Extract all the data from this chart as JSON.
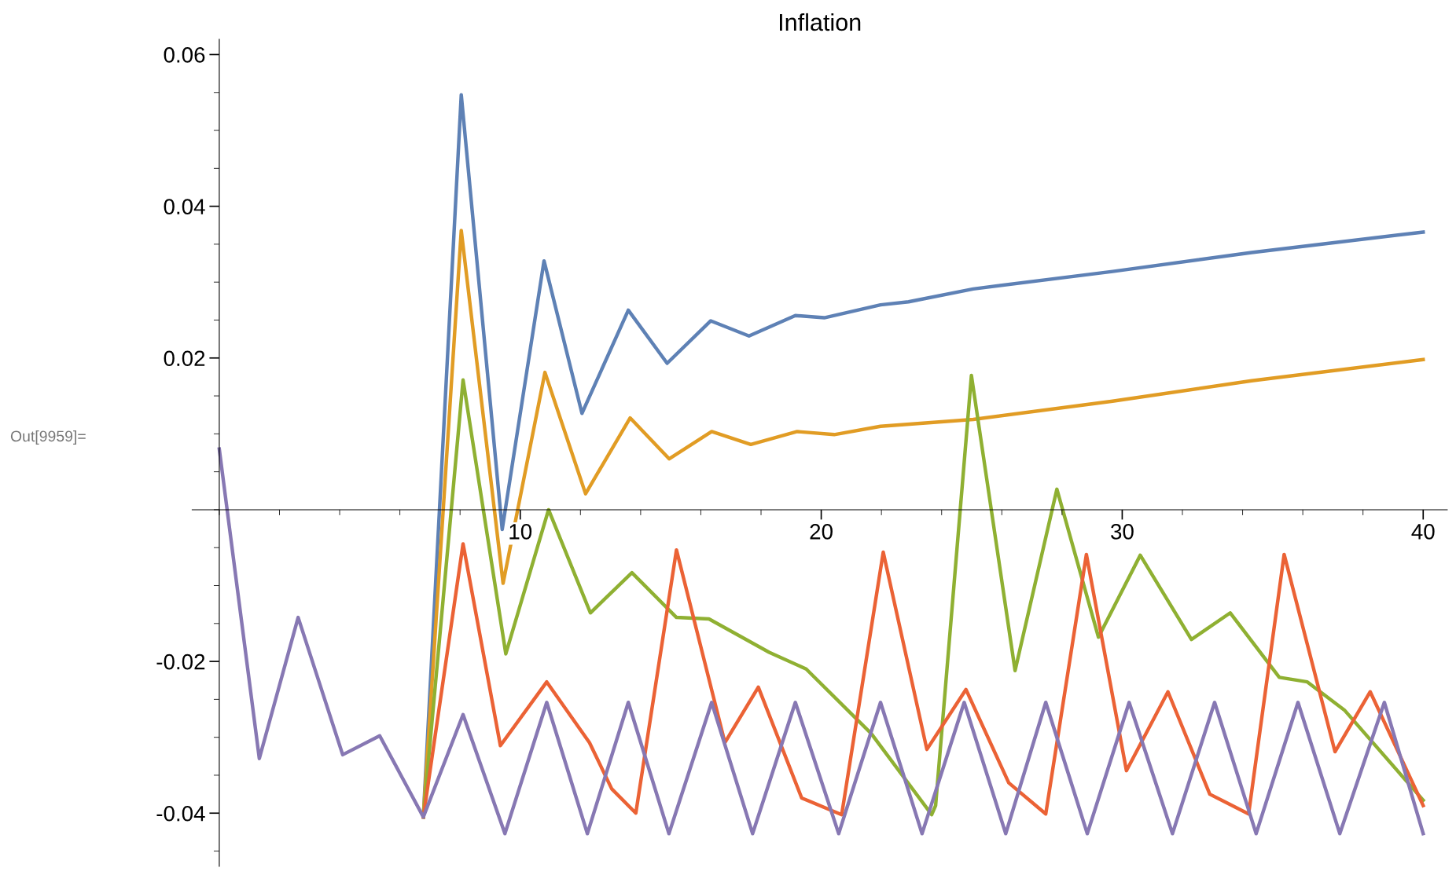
{
  "chart_data": {
    "type": "line",
    "title": "Inflation",
    "annotations": [
      "Out[9959]="
    ],
    "xlim": [
      -0.9,
      40.8
    ],
    "ylim": [
      -0.047,
      0.062
    ],
    "xticks": [
      10,
      20,
      30,
      40
    ],
    "yticks": [
      -0.04,
      -0.02,
      0.02,
      0.04,
      0.06
    ],
    "grid": false,
    "legend": false,
    "marker": "none",
    "line_style": "solid",
    "series": [
      {
        "color": "#5e81b5",
        "x": [
          6.78,
          8.04,
          9.4,
          10.79,
          12.05,
          13.59,
          14.88,
          16.33,
          17.6,
          19.14,
          20.1,
          21.97,
          22.9,
          25.05,
          29.68,
          34.3,
          40
        ],
        "values": [
          -0.0405,
          0.0547,
          -0.0026,
          0.0328,
          0.0127,
          0.0263,
          0.0193,
          0.0249,
          0.0229,
          0.0256,
          0.0253,
          0.027,
          0.0274,
          0.0291,
          0.0314,
          0.0339,
          0.0366
        ]
      },
      {
        "color": "#e19c24",
        "x": [
          6.78,
          8.04,
          9.43,
          10.82,
          12.17,
          13.65,
          14.95,
          16.36,
          17.66,
          19.2,
          20.43,
          21.97,
          25.05,
          29.68,
          34.3,
          40
        ],
        "values": [
          -0.0405,
          0.0368,
          -0.0097,
          0.0181,
          0.0021,
          0.0121,
          0.0067,
          0.0103,
          0.0086,
          0.0103,
          0.0099,
          0.011,
          0.0119,
          0.0143,
          0.017,
          0.0198
        ]
      },
      {
        "color": "#8fb032",
        "x": [
          6.78,
          8.1,
          9.52,
          10.94,
          12.33,
          13.71,
          15.19,
          16.27,
          18.27,
          19.5,
          21.66,
          23.67,
          23.8,
          24.99,
          26.44,
          27.83,
          29.21,
          30.6,
          32.3,
          33.59,
          35.22,
          36.15,
          37.38,
          40
        ],
        "values": [
          -0.0405,
          0.0171,
          -0.019,
          0.0,
          -0.0136,
          -0.0083,
          -0.0142,
          -0.0144,
          -0.0188,
          -0.021,
          -0.0295,
          -0.0402,
          -0.039,
          0.0177,
          -0.0212,
          0.0027,
          -0.0168,
          -0.006,
          -0.0171,
          -0.0136,
          -0.0221,
          -0.0227,
          -0.0264,
          -0.0383
        ]
      },
      {
        "color": "#eb6235",
        "x": [
          6.78,
          8.1,
          9.34,
          10.88,
          12.3,
          13.04,
          13.84,
          15.19,
          16.8,
          17.91,
          19.35,
          20.68,
          22.06,
          23.51,
          24.81,
          26.23,
          27.46,
          28.81,
          30.14,
          31.52,
          32.91,
          34.2,
          35.38,
          37.07,
          38.24,
          40
        ],
        "values": [
          -0.0405,
          -0.0045,
          -0.0311,
          -0.0227,
          -0.0307,
          -0.0368,
          -0.04,
          -0.0053,
          -0.0307,
          -0.0234,
          -0.038,
          -0.0402,
          -0.0056,
          -0.0316,
          -0.0237,
          -0.036,
          -0.0401,
          -0.0059,
          -0.0344,
          -0.024,
          -0.0375,
          -0.0401,
          -0.0059,
          -0.0319,
          -0.024,
          -0.039
        ]
      },
      {
        "color": "#8778b3",
        "x": [
          0,
          1.33,
          2.62,
          4.1,
          5.33,
          6.78,
          8.1,
          9.49,
          10.88,
          12.23,
          13.59,
          14.94,
          16.36,
          17.72,
          19.14,
          20.58,
          21.97,
          23.35,
          24.75,
          26.13,
          27.46,
          28.84,
          30.23,
          31.67,
          33.07,
          34.45,
          35.84,
          37.23,
          38.71,
          40
        ],
        "values": [
          0.008,
          -0.0328,
          -0.0142,
          -0.0323,
          -0.0298,
          -0.0405,
          -0.027,
          -0.0427,
          -0.0254,
          -0.0427,
          -0.0254,
          -0.0427,
          -0.0254,
          -0.0427,
          -0.0254,
          -0.0427,
          -0.0254,
          -0.0427,
          -0.0254,
          -0.0427,
          -0.0254,
          -0.0427,
          -0.0254,
          -0.0427,
          -0.0254,
          -0.0427,
          -0.0254,
          -0.0427,
          -0.0254,
          -0.0427
        ]
      }
    ]
  }
}
